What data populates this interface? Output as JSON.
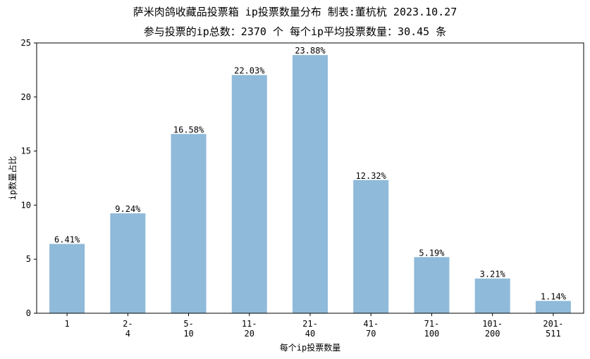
{
  "chart_data": {
    "type": "bar",
    "title": "萨米肉鸽收藏品投票箱  ip投票数量分布  制表:董杭杭 2023.10.27",
    "subtitle": "参与投票的ip总数：2370 个  每个ip平均投票数量：30.45 条",
    "xlabel": "每个ip投票数量",
    "ylabel": "ip数量占比",
    "categories": [
      "1",
      "2-\n4",
      "5-\n10",
      "11-\n20",
      "21-\n40",
      "41-\n70",
      "71-\n100",
      "101-\n200",
      "201-\n511"
    ],
    "values": [
      6.41,
      9.24,
      16.58,
      22.03,
      23.88,
      12.32,
      5.19,
      3.21,
      1.14
    ],
    "data_labels": [
      "6.41%",
      "9.24%",
      "16.58%",
      "22.03%",
      "23.88%",
      "12.32%",
      "5.19%",
      "3.21%",
      "1.14%"
    ],
    "ylim": [
      0,
      25
    ],
    "yticks": [
      0,
      5,
      10,
      15,
      20,
      25
    ],
    "bar_color": "#8fbad9",
    "grid": false,
    "legend": "none"
  }
}
